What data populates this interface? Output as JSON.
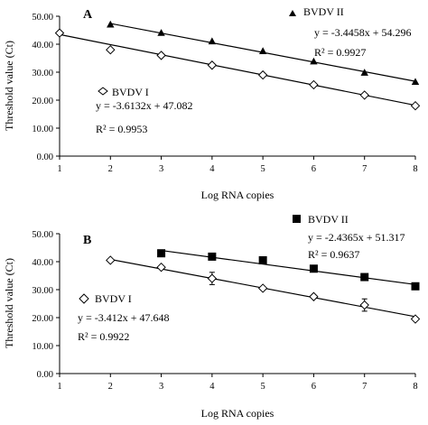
{
  "chart_data": [
    {
      "type": "scatter",
      "panel_label": "A",
      "xlabel": "Log RNA copies",
      "ylabel": "Threshold value (Ct)",
      "xlim": [
        1,
        8
      ],
      "ylim": [
        0,
        50
      ],
      "xticks": [
        "1",
        "2",
        "3",
        "4",
        "5",
        "6",
        "7",
        "8"
      ],
      "yticks": [
        "0.00",
        "10.00",
        "20.00",
        "30.00",
        "40.00",
        "50.00"
      ],
      "grid": false,
      "series": [
        {
          "name": "BVDV II",
          "marker": "triangle",
          "x": [
            2,
            3,
            4,
            5,
            6,
            7,
            8
          ],
          "y": [
            47.0,
            44.0,
            41.0,
            37.5,
            33.8,
            29.8,
            26.5
          ],
          "equation": "y = -3.4458x + 54.296",
          "r2": "R² = 0.9927",
          "fit": {
            "slope": -3.4458,
            "intercept": 54.296
          }
        },
        {
          "name": "BVDV I",
          "marker": "diamond",
          "x": [
            1,
            2,
            3,
            4,
            5,
            6,
            7,
            8
          ],
          "y": [
            44.0,
            38.0,
            36.0,
            32.5,
            29.0,
            25.5,
            21.8,
            18.0
          ],
          "equation": "y = -3.6132x + 47.082",
          "r2": "R² = 0.9953",
          "fit": {
            "slope": -3.6132,
            "intercept": 47.082
          }
        }
      ]
    },
    {
      "type": "scatter",
      "panel_label": "B",
      "xlabel": "Log RNA copies",
      "ylabel": "Threshold value (Ct)",
      "xlim": [
        1,
        8
      ],
      "ylim": [
        0,
        50
      ],
      "xticks": [
        "1",
        "2",
        "3",
        "4",
        "5",
        "6",
        "7",
        "8"
      ],
      "yticks": [
        "0.00",
        "10.00",
        "20.00",
        "30.00",
        "40.00",
        "50.00"
      ],
      "grid": false,
      "series": [
        {
          "name": "BVDV II",
          "marker": "square",
          "x": [
            3,
            4,
            5,
            6,
            7,
            8
          ],
          "y": [
            43.0,
            41.8,
            40.5,
            37.5,
            34.5,
            31.2
          ],
          "equation": "y = -2.4365x + 51.317",
          "r2": "R² = 0.9637",
          "fit": {
            "slope": -2.4365,
            "intercept": 51.317
          }
        },
        {
          "name": "BVDV I",
          "marker": "diamond",
          "x": [
            2,
            3,
            4,
            5,
            6,
            7,
            8
          ],
          "y": [
            40.5,
            38.0,
            34.0,
            30.5,
            27.5,
            24.5,
            19.5
          ],
          "error": [
            0,
            0,
            2.2,
            0,
            0,
            2.2,
            0
          ],
          "equation": "y = -3.412x + 47.648",
          "r2": "R² = 0.9922",
          "fit": {
            "slope": -3.412,
            "intercept": 47.648
          }
        }
      ]
    }
  ]
}
